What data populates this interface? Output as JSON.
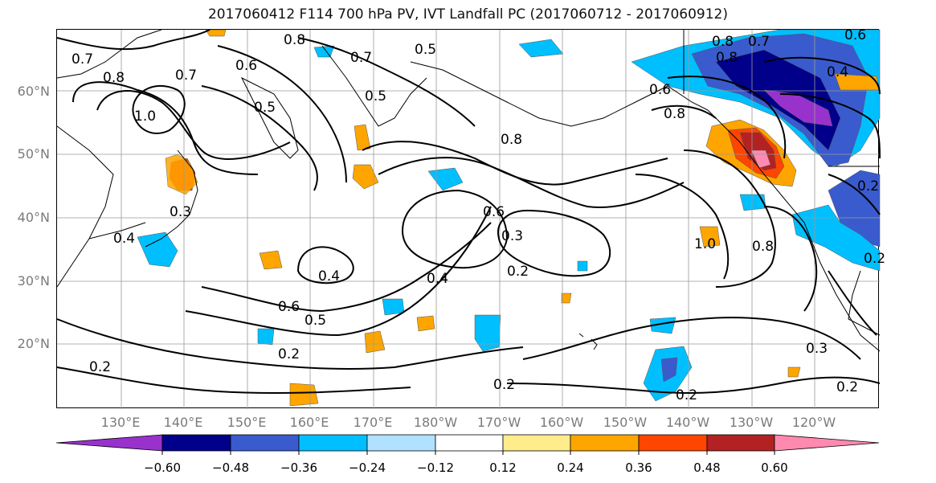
{
  "title": "2017060412 F114 700 hPa PV, IVT Landfall PC (2017060712 - 2017060912)",
  "map": {
    "lat_labels": [
      "60°N",
      "50°N",
      "40°N",
      "30°N",
      "20°N"
    ],
    "lon_labels": [
      "130°E",
      "140°E",
      "150°E",
      "160°E",
      "170°E",
      "180°W",
      "170°W",
      "160°W",
      "150°W",
      "140°W",
      "130°W",
      "120°W"
    ],
    "contour_labels": [
      "0.7",
      "0.8",
      "1.0",
      "0.7",
      "0.6",
      "0.5",
      "0.8",
      "0.7",
      "0.5",
      "0.5",
      "0.6",
      "0.8",
      "0.6",
      "0.3",
      "0.2",
      "0.4",
      "0.3",
      "0.8",
      "0.4",
      "0.4",
      "0.6",
      "0.5",
      "0.2",
      "0.2",
      "0.2",
      "1.0",
      "0.8",
      "0.2",
      "0.3",
      "0.2",
      "0.2",
      "0.8",
      "0.6",
      "0.8",
      "0.4",
      "0.7",
      "0.2"
    ]
  },
  "colorbar": {
    "tick_labels": [
      "−0.60",
      "−0.48",
      "−0.36",
      "−0.24",
      "−0.12",
      "0.12",
      "0.24",
      "0.36",
      "0.48",
      "0.60"
    ],
    "colors": [
      "#9932cc",
      "#00008b",
      "#3a5bcd",
      "#00bfff",
      "#b0e2ff",
      "#ffffff",
      "#ffec8b",
      "#ffa500",
      "#ff4500",
      "#b22222",
      "#ff8ab0"
    ]
  }
}
